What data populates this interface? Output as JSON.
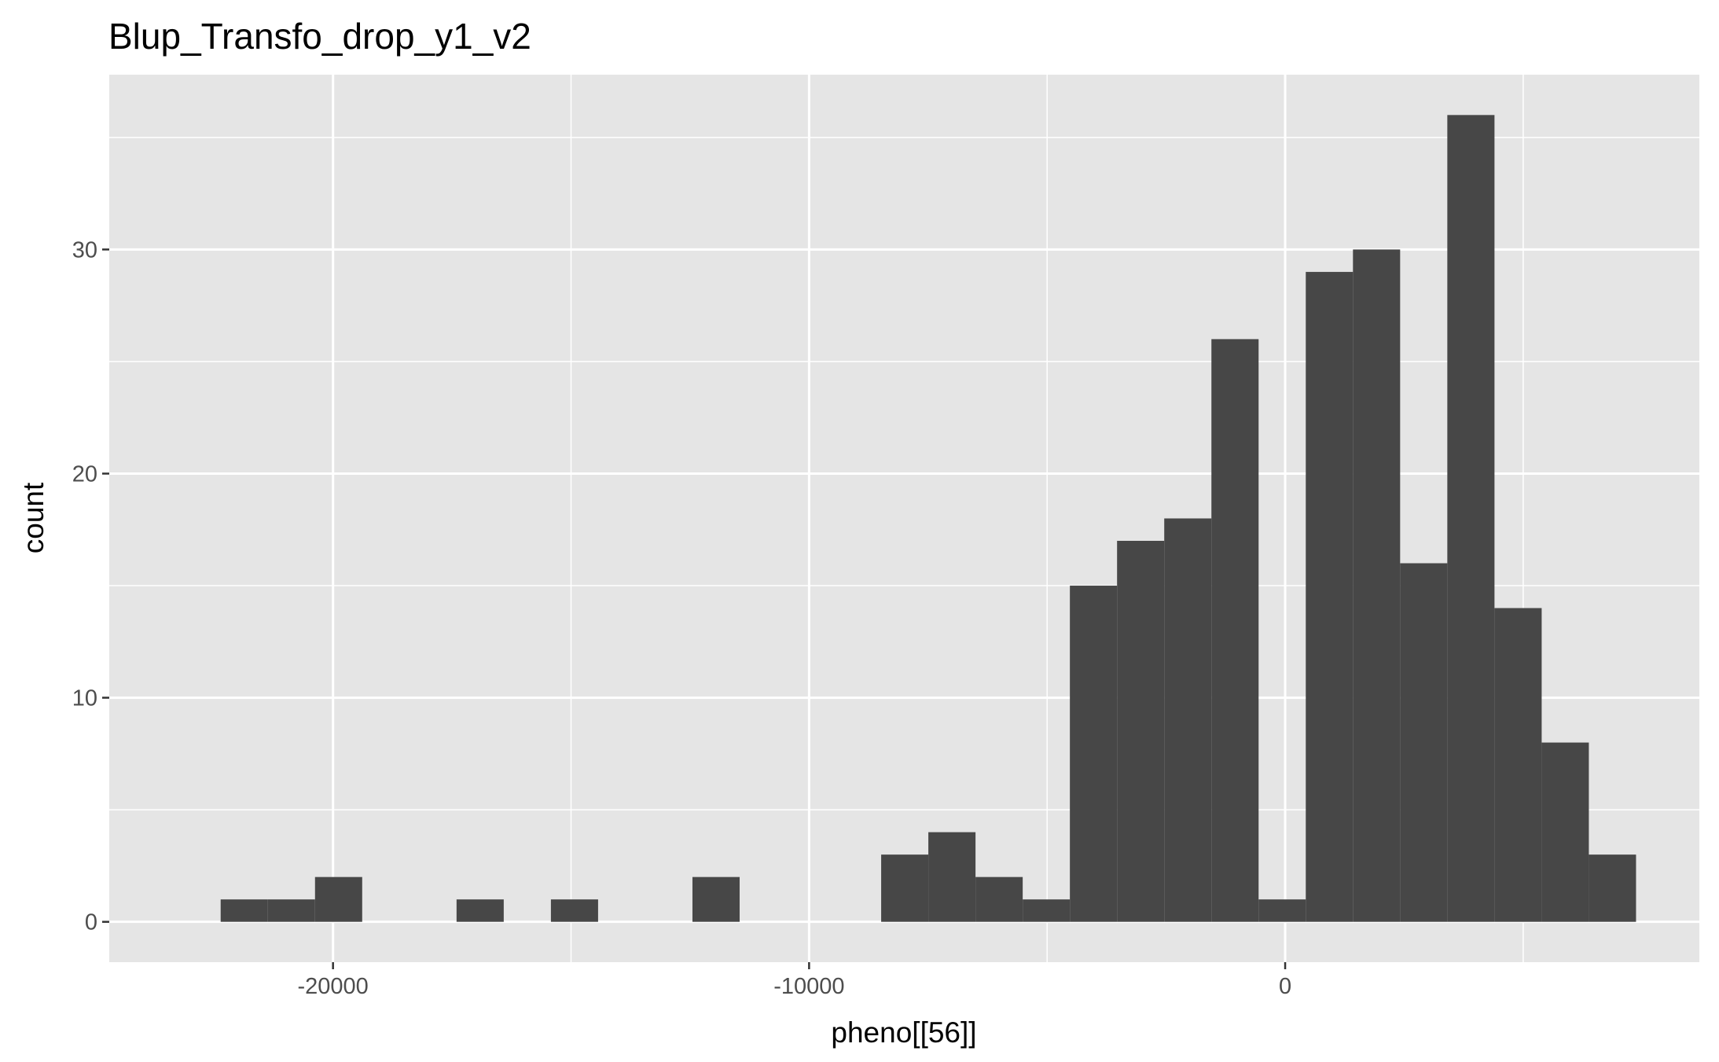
{
  "chart_data": {
    "type": "bar",
    "title": "Blup_Transfo_drop_y1_v2",
    "xlabel": "pheno[[56]]",
    "ylabel": "count",
    "bin_width": 991,
    "bins": [
      {
        "x_start": -22360,
        "count": 1
      },
      {
        "x_start": -21369,
        "count": 1
      },
      {
        "x_start": -20378,
        "count": 2
      },
      {
        "x_start": -19387,
        "count": 0
      },
      {
        "x_start": -18396,
        "count": 0
      },
      {
        "x_start": -17405,
        "count": 1
      },
      {
        "x_start": -16414,
        "count": 0
      },
      {
        "x_start": -15423,
        "count": 1
      },
      {
        "x_start": -14432,
        "count": 0
      },
      {
        "x_start": -13441,
        "count": 0
      },
      {
        "x_start": -12450,
        "count": 2
      },
      {
        "x_start": -11459,
        "count": 0
      },
      {
        "x_start": -10468,
        "count": 0
      },
      {
        "x_start": -9477,
        "count": 0
      },
      {
        "x_start": -8486,
        "count": 3
      },
      {
        "x_start": -7495,
        "count": 4
      },
      {
        "x_start": -6504,
        "count": 2
      },
      {
        "x_start": -5513,
        "count": 1
      },
      {
        "x_start": -4522,
        "count": 15
      },
      {
        "x_start": -3531,
        "count": 17
      },
      {
        "x_start": -2540,
        "count": 18
      },
      {
        "x_start": -1549,
        "count": 26
      },
      {
        "x_start": -558,
        "count": 1
      },
      {
        "x_start": 433,
        "count": 29
      },
      {
        "x_start": 1424,
        "count": 30
      },
      {
        "x_start": 2415,
        "count": 16
      },
      {
        "x_start": 3406,
        "count": 36
      },
      {
        "x_start": 4397,
        "count": 14
      },
      {
        "x_start": 5388,
        "count": 8
      },
      {
        "x_start": 6379,
        "count": 3
      }
    ],
    "xlim": [
      -24700,
      8700
    ],
    "ylim": [
      -1.8,
      37.8
    ],
    "x_ticks": [
      -20000,
      -10000,
      0
    ],
    "x_tick_labels": [
      "-20000",
      "-10000",
      "0"
    ],
    "x_minor_ticks": [
      -15000,
      -5000,
      5000
    ],
    "y_ticks": [
      0,
      10,
      20,
      30
    ],
    "y_tick_labels": [
      "0",
      "10",
      "20",
      "30"
    ],
    "y_minor_ticks": [
      5,
      15,
      25,
      35
    ],
    "grid": true,
    "colors": {
      "bar": "#474747",
      "panel": "#e5e5e5",
      "grid": "#ffffff",
      "tick_label": "#4d4d4d"
    }
  }
}
